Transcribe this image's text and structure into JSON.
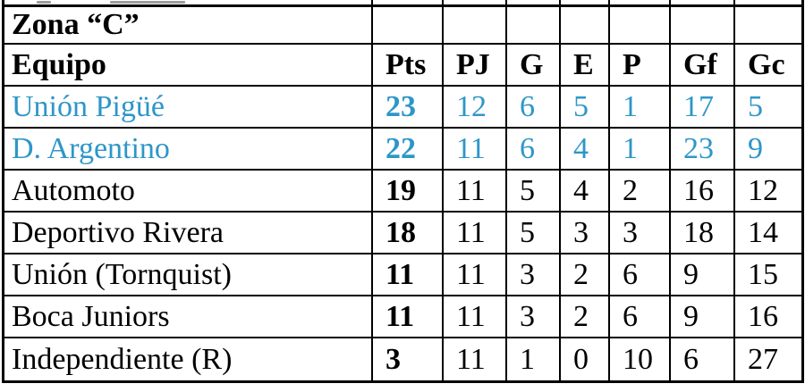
{
  "colors": {
    "highlight_blue": "#2e96c8",
    "text_black": "#000000",
    "border_black": "#000000",
    "background": "#ffffff"
  },
  "table": {
    "zone_title": "Zona “C”",
    "columns": [
      "Equipo",
      "Pts",
      "PJ",
      "G",
      "E",
      "P",
      "Gf",
      "Gc"
    ],
    "rows": [
      {
        "team": "Unión Pigüé",
        "pts": "23",
        "pj": "12",
        "g": "6",
        "e": "5",
        "p": "1",
        "gf": "17",
        "gc": "5",
        "highlighted": true
      },
      {
        "team": "D. Argentino",
        "pts": "22",
        "pj": "11",
        "g": "6",
        "e": "4",
        "p": "1",
        "gf": "23",
        "gc": "9",
        "highlighted": true
      },
      {
        "team": "Automoto",
        "pts": "19",
        "pj": "11",
        "g": "5",
        "e": "4",
        "p": "2",
        "gf": "16",
        "gc": "12",
        "highlighted": false
      },
      {
        "team": "Deportivo Rivera",
        "pts": "18",
        "pj": "11",
        "g": "5",
        "e": "3",
        "p": "3",
        "gf": "18",
        "gc": "14",
        "highlighted": false
      },
      {
        "team": "Unión (Tornquist)",
        "pts": "11",
        "pj": "11",
        "g": "3",
        "e": "2",
        "p": "6",
        "gf": "9",
        "gc": "15",
        "highlighted": false
      },
      {
        "team": "Boca Juniors",
        "pts": "11",
        "pj": "11",
        "g": "3",
        "e": "2",
        "p": "6",
        "gf": "9",
        "gc": "16",
        "highlighted": false
      },
      {
        "team": "Independiente (R)",
        "pts": "3",
        "pj": "11",
        "g": "1",
        "e": "0",
        "p": "10",
        "gf": "6",
        "gc": "27",
        "highlighted": false
      }
    ]
  }
}
